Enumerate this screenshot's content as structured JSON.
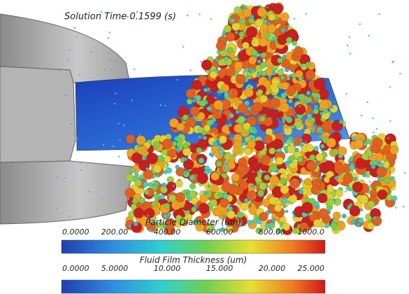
{
  "header": {
    "title": "Solution Time 0.1599 (s)"
  },
  "colorbars": [
    {
      "title": "Particle Diameter (um)",
      "labels": [
        "0.0000",
        "200.00",
        "400.00",
        "600.00",
        "800.00",
        "1000.0"
      ]
    },
    {
      "title": "Fluid Film Thickness (um)",
      "labels": [
        "0.0000",
        "5.0000",
        "10.000",
        "15.000",
        "20.000",
        "25.000"
      ]
    }
  ]
}
